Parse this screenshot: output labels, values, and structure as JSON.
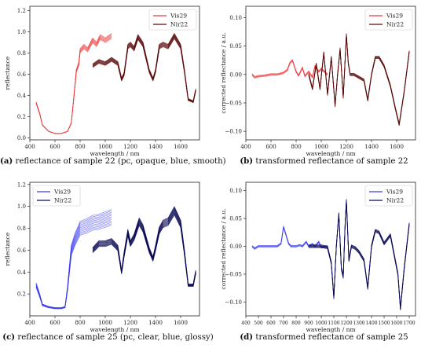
{
  "legend": {
    "series1": "Vis29",
    "series2": "Nir22"
  },
  "axes": {
    "xlabel": "wavelength / nm",
    "ylabel_reflectance": "reflectance",
    "ylabel_corrected": "corrected reflectance / a.u."
  },
  "captions": [
    {
      "letter": "(a)",
      "text": "reflectance of sample 22 (pc, opaque, blue, smooth)"
    },
    {
      "letter": "(b)",
      "text": "transformed reflectance of sample 22"
    },
    {
      "letter": "(c)",
      "text": "reflectance of sample 25 (pc, clear, blue, glossy)"
    },
    {
      "letter": "(d)",
      "text": "transformed reflectance of sample 25"
    }
  ],
  "colors": {
    "red_vis": "#ee3a3a",
    "red_nir": "#5a0a0a",
    "blue_vis": "#3a3aee",
    "blue_nir": "#0a0a55"
  },
  "chart_data": [
    {
      "type": "line",
      "xlabel": "wavelength / nm",
      "ylabel": "reflectance",
      "xlim": [
        400,
        1750
      ],
      "ylim": [
        -0.02,
        1.24
      ],
      "xticks": [
        400,
        600,
        800,
        1000,
        1200,
        1400,
        1600
      ],
      "yticks": [
        0.0,
        0.2,
        0.4,
        0.6,
        0.8,
        1.0,
        1.2
      ],
      "yticklabels": [
        "0.0",
        "0.2",
        "0.4",
        "0.6",
        "0.8",
        "1.0",
        "1.2"
      ],
      "legend_position": "top-right",
      "series": [
        {
          "name": "Vis29",
          "x": [
            450,
            480,
            500,
            550,
            600,
            650,
            700,
            730,
            750,
            770,
            790,
            800,
            830,
            860,
            900,
            930,
            960,
            1000,
            1050
          ],
          "y": [
            0.33,
            0.22,
            0.12,
            0.06,
            0.04,
            0.04,
            0.06,
            0.14,
            0.38,
            0.63,
            0.7,
            0.82,
            0.86,
            0.83,
            0.92,
            0.88,
            0.95,
            0.92,
            0.96
          ],
          "spread": 0.05,
          "count": 8
        },
        {
          "name": "Nir22",
          "x": [
            900,
            950,
            1000,
            1050,
            1100,
            1130,
            1150,
            1180,
            1200,
            1230,
            1260,
            1300,
            1350,
            1380,
            1400,
            1430,
            1460,
            1500,
            1550,
            1600,
            1630,
            1660,
            1700,
            1720
          ],
          "y": [
            0.68,
            0.72,
            0.7,
            0.74,
            0.7,
            0.55,
            0.6,
            0.86,
            0.88,
            0.84,
            0.95,
            0.88,
            0.63,
            0.55,
            0.63,
            0.86,
            0.88,
            0.86,
            0.96,
            0.86,
            0.63,
            0.36,
            0.34,
            0.45
          ],
          "spread": 0.05,
          "count": 8
        }
      ]
    },
    {
      "type": "line",
      "xlabel": "wavelength / nm",
      "ylabel": "corrected reflectance / a.u.",
      "xlim": [
        400,
        1750
      ],
      "ylim": [
        -0.115,
        0.12
      ],
      "xticks": [
        400,
        600,
        800,
        1000,
        1200,
        1400,
        1600
      ],
      "yticks": [
        -0.1,
        -0.05,
        0.0,
        0.05,
        0.1
      ],
      "yticklabels": [
        "−0.10",
        "−0.05",
        "0.00",
        "0.05",
        "0.10"
      ],
      "legend_position": "top-right",
      "series": [
        {
          "name": "Vis29",
          "x": [
            450,
            470,
            500,
            550,
            600,
            650,
            700,
            730,
            750,
            770,
            790,
            800,
            820,
            850,
            870,
            900,
            930,
            950,
            980,
            1000,
            1050
          ],
          "y": [
            0.0,
            -0.005,
            -0.003,
            -0.002,
            0.0,
            0.0,
            0.003,
            0.008,
            0.02,
            0.025,
            0.012,
            0.005,
            -0.002,
            0.012,
            -0.003,
            0.005,
            -0.005,
            0.015,
            0.005,
            0.01,
            0.0
          ],
          "spread": 0.003,
          "count": 6
        },
        {
          "name": "Nir22",
          "x": [
            900,
            930,
            960,
            990,
            1020,
            1050,
            1080,
            1110,
            1130,
            1150,
            1175,
            1200,
            1215,
            1230,
            1260,
            1300,
            1340,
            1370,
            1400,
            1430,
            1460,
            1500,
            1550,
            1590,
            1620,
            1660,
            1700
          ],
          "y": [
            0.0,
            -0.025,
            0.018,
            -0.025,
            0.038,
            -0.035,
            0.03,
            -0.055,
            0.0,
            0.045,
            -0.04,
            0.07,
            0.02,
            0.0,
            0.0,
            -0.005,
            -0.01,
            -0.045,
            0.0,
            0.03,
            0.03,
            0.015,
            -0.02,
            -0.06,
            -0.088,
            -0.03,
            0.04
          ],
          "spread": 0.004,
          "count": 6
        }
      ]
    },
    {
      "type": "line",
      "xlabel": "wavelength / nm",
      "ylabel": "reflectance",
      "xlim": [
        400,
        1750
      ],
      "ylim": [
        0.0,
        1.22
      ],
      "xticks": [
        400,
        600,
        800,
        1000,
        1200,
        1400,
        1600
      ],
      "yticks": [
        0.2,
        0.4,
        0.6,
        0.8,
        1.0,
        1.2
      ],
      "yticklabels": [
        "0.2",
        "0.4",
        "0.6",
        "0.8",
        "1.0",
        "1.2"
      ],
      "legend_position": "top-left",
      "series": [
        {
          "name": "Vis29",
          "x": [
            450,
            480,
            500,
            550,
            600,
            650,
            680,
            700,
            730,
            760,
            800,
            850,
            900,
            950,
            1000,
            1050
          ],
          "y": [
            0.28,
            0.18,
            0.1,
            0.08,
            0.07,
            0.07,
            0.08,
            0.25,
            0.6,
            0.7,
            0.8,
            0.82,
            0.85,
            0.86,
            0.88,
            0.9
          ],
          "spread": 0.16,
          "count": 12
        },
        {
          "name": "Nir22",
          "x": [
            900,
            950,
            1000,
            1050,
            1100,
            1130,
            1150,
            1180,
            1200,
            1230,
            1270,
            1300,
            1350,
            1380,
            1400,
            1430,
            1460,
            1500,
            1550,
            1600,
            1630,
            1660,
            1700,
            1720
          ],
          "y": [
            0.6,
            0.66,
            0.66,
            0.68,
            0.62,
            0.4,
            0.56,
            0.76,
            0.66,
            0.72,
            0.86,
            0.8,
            0.6,
            0.52,
            0.62,
            0.78,
            0.84,
            0.86,
            0.96,
            0.84,
            0.58,
            0.28,
            0.28,
            0.4
          ],
          "spread": 0.08,
          "count": 10
        }
      ]
    },
    {
      "type": "line",
      "xlabel": "wavelength / nm",
      "ylabel": "corrected reflectance / a.u.",
      "xlim": [
        400,
        1750
      ],
      "ylim": [
        -0.125,
        0.115
      ],
      "xticks": [
        400,
        500,
        600,
        700,
        800,
        900,
        1000,
        1100,
        1200,
        1300,
        1400,
        1500,
        1600,
        1700
      ],
      "xticklabels": [
        "400",
        "500",
        "600",
        "700",
        "800",
        "900",
        "1000",
        "1100",
        "1200",
        "1300",
        "1400",
        "1500",
        "1600",
        "1700"
      ],
      "yticks": [
        -0.1,
        -0.05,
        0.0,
        0.05,
        0.1
      ],
      "yticklabels": [
        "−0.10",
        "−0.05",
        "0.00",
        "0.05",
        "0.10"
      ],
      "legend_position": "top-right",
      "series": [
        {
          "name": "Vis29",
          "x": [
            450,
            470,
            500,
            550,
            600,
            650,
            680,
            700,
            720,
            740,
            760,
            800,
            830,
            850,
            880,
            900,
            930,
            950,
            980,
            1000,
            1050
          ],
          "y": [
            0.0,
            -0.004,
            0.0,
            0.0,
            0.0,
            0.0,
            0.005,
            0.035,
            0.02,
            0.005,
            0.0,
            0.0,
            0.002,
            0.0,
            0.008,
            0.0,
            0.004,
            0.0,
            0.008,
            -0.002,
            0.0
          ],
          "spread": 0.003,
          "count": 6
        },
        {
          "name": "Nir22",
          "x": [
            900,
            950,
            1000,
            1050,
            1080,
            1100,
            1120,
            1140,
            1160,
            1175,
            1190,
            1200,
            1220,
            1240,
            1270,
            1300,
            1340,
            1370,
            1400,
            1430,
            1460,
            1500,
            1550,
            1580,
            1610,
            1630,
            1660,
            1700
          ],
          "y": [
            0.0,
            0.0,
            0.0,
            -0.002,
            -0.03,
            -0.092,
            0.0,
            0.058,
            -0.04,
            -0.055,
            0.04,
            0.082,
            -0.025,
            0.0,
            -0.003,
            -0.01,
            -0.025,
            -0.075,
            0.0,
            0.028,
            0.025,
            0.005,
            0.02,
            -0.015,
            -0.05,
            -0.112,
            -0.04,
            0.04
          ],
          "spread": 0.005,
          "count": 6
        }
      ]
    }
  ]
}
